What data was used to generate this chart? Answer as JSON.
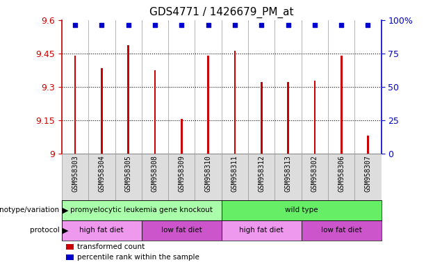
{
  "title": "GDS4771 / 1426679_PM_at",
  "samples": [
    "GSM958303",
    "GSM958304",
    "GSM958305",
    "GSM958308",
    "GSM958309",
    "GSM958310",
    "GSM958311",
    "GSM958312",
    "GSM958313",
    "GSM958302",
    "GSM958306",
    "GSM958307"
  ],
  "bar_values": [
    9.44,
    9.385,
    9.487,
    9.375,
    9.155,
    9.44,
    9.462,
    9.32,
    9.322,
    9.328,
    9.44,
    9.08
  ],
  "percentile_display": [
    93,
    93,
    93,
    93,
    93,
    93,
    93,
    93,
    93,
    93,
    93,
    93
  ],
  "bar_color": "#cc0000",
  "percentile_color": "#0000cc",
  "ylim_left": [
    9.0,
    9.6
  ],
  "ylim_right": [
    0,
    100
  ],
  "yticks_left": [
    9.0,
    9.15,
    9.3,
    9.45,
    9.6
  ],
  "ytick_labels_left": [
    "9",
    "9.15",
    "9.3",
    "9.45",
    "9.6"
  ],
  "yticks_right": [
    0,
    25,
    50,
    75,
    100
  ],
  "ytick_labels_right": [
    "0",
    "25",
    "50",
    "75",
    "100%"
  ],
  "hlines": [
    9.15,
    9.3,
    9.45
  ],
  "genotype_groups": [
    {
      "label": "promyelocytic leukemia gene knockout",
      "start": 0,
      "end": 6,
      "color": "#aaffaa"
    },
    {
      "label": "wild type",
      "start": 6,
      "end": 12,
      "color": "#66ee66"
    }
  ],
  "protocol_groups": [
    {
      "label": "high fat diet",
      "start": 0,
      "end": 3,
      "color": "#ee99ee"
    },
    {
      "label": "low fat diet",
      "start": 3,
      "end": 6,
      "color": "#cc55cc"
    },
    {
      "label": "high fat diet",
      "start": 6,
      "end": 9,
      "color": "#ee99ee"
    },
    {
      "label": "low fat diet",
      "start": 9,
      "end": 12,
      "color": "#cc55cc"
    }
  ],
  "legend_items": [
    {
      "color": "#cc0000",
      "label": "transformed count"
    },
    {
      "color": "#0000cc",
      "label": "percentile rank within the sample"
    }
  ],
  "left_axis_color": "#cc0000",
  "right_axis_color": "#0000cc",
  "bar_width": 0.07,
  "sample_bg": "#dddddd",
  "sample_fontsize": 7,
  "label_fontsize": 8,
  "title_fontsize": 11
}
